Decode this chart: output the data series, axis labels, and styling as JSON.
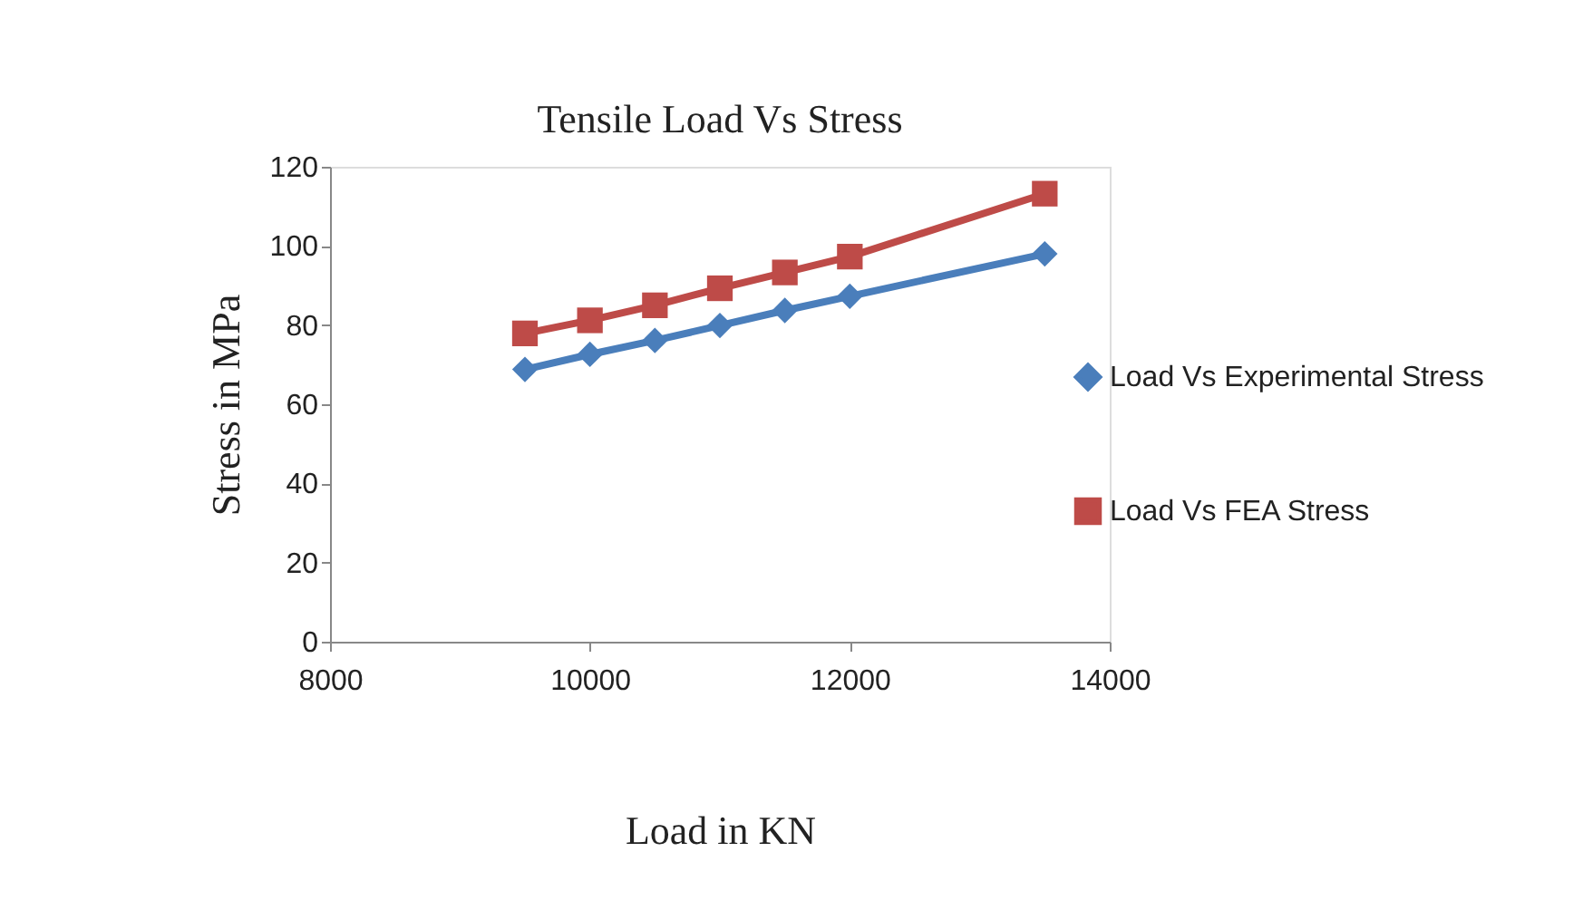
{
  "chart_data": {
    "type": "line",
    "title": "Tensile Load Vs Stress",
    "xlabel": "Load in KN",
    "ylabel": "Stress in MPa",
    "x": [
      9500,
      10000,
      10500,
      11000,
      11500,
      12000,
      13500
    ],
    "series": [
      {
        "name": "Load Vs Experimental Stress",
        "color": "#4a7ebb",
        "marker": "diamond",
        "values": [
          68.8,
          72.6,
          76.1,
          79.9,
          83.7,
          87.3,
          98.0
        ]
      },
      {
        "name": "Load Vs FEA Stress",
        "color": "#be4b48",
        "marker": "square",
        "values": [
          77.9,
          81.2,
          85.0,
          89.3,
          93.3,
          97.3,
          113.2
        ]
      }
    ],
    "xlim": [
      8000,
      14000
    ],
    "xticks": [
      {
        "value": 8000,
        "label": "8000"
      },
      {
        "value": 10000,
        "label": "10000"
      },
      {
        "value": 12000,
        "label": "12000"
      },
      {
        "value": 14000,
        "label": "14000"
      }
    ],
    "ylim": [
      0,
      120
    ],
    "yticks": [
      0,
      20,
      40,
      60,
      80,
      100,
      120
    ],
    "grid": false,
    "legend": "right",
    "line_style": "solid"
  }
}
